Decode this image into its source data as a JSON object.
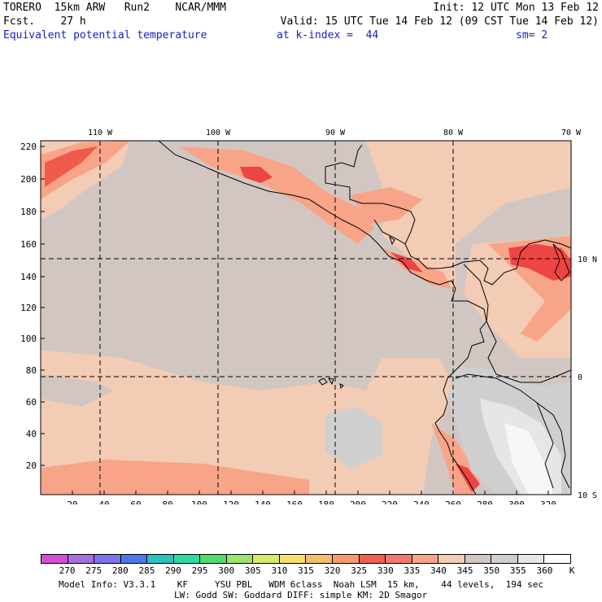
{
  "header": {
    "line1_left": "TORERO  15km ARW   Run2    NCAR/MMM",
    "line1_right": "Init: 12 UTC Mon 13 Feb 12",
    "line2_left": "Fcst.    27 h",
    "line2_right": "Valid: 15 UTC Tue 14 Feb 12 (09 CST Tue 14 Feb 12)",
    "line3_field": "Equivalent potential temperature",
    "line3_level": "at k-index =  44",
    "line3_smooth": "sm= 2"
  },
  "map": {
    "lon_labels": [
      "110 W",
      "100 W",
      "90 W",
      "80 W",
      "70 W"
    ],
    "lat_labels": [
      "10 N",
      "0",
      "10 S"
    ],
    "y_ticks": [
      "220",
      "200",
      "180",
      "160",
      "140",
      "120",
      "100",
      "80",
      "60",
      "40",
      "20"
    ],
    "x_ticks": [
      "20",
      "40",
      "60",
      "80",
      "100",
      "120",
      "140",
      "160",
      "180",
      "200",
      "220",
      "240",
      "260",
      "280",
      "300",
      "320"
    ],
    "colors": {
      "background_field": "#d2c6c2",
      "light_salmon": "#f2ccb4",
      "salmon": "#f8a488",
      "red_salmon": "#f57462",
      "red": "#ee4444",
      "gray": "#cfcfcf",
      "light_gray": "#e6e6e6",
      "near_white": "#f7f7f7"
    }
  },
  "colorbar": {
    "labels": [
      "270",
      "275",
      "280",
      "285",
      "290",
      "295",
      "300",
      "305",
      "310",
      "315",
      "320",
      "325",
      "330",
      "335",
      "340",
      "345",
      "350",
      "355",
      "360"
    ],
    "unit": "K",
    "colors": [
      "#d24fd2",
      "#a66fd9",
      "#7d74e8",
      "#4f75e6",
      "#2fbfbf",
      "#2fd9a6",
      "#52d96e",
      "#9ee26e",
      "#d6ea6e",
      "#f5e06e",
      "#f5bc6e",
      "#f59a6e",
      "#f06050",
      "#f07a6e",
      "#f8a488",
      "#f2ccb4",
      "#d2c6c2",
      "#cfcfcf",
      "#e6e6e6",
      "#ffffff"
    ]
  },
  "footer": {
    "line1": "Model Info: V3.3.1    KF     YSU PBL   WDM 6class  Noah LSM  15 km,    44 levels,  194 sec",
    "line2": "LW: Godd SW: Goddard DIFF: simple KM: 2D Smagor"
  }
}
